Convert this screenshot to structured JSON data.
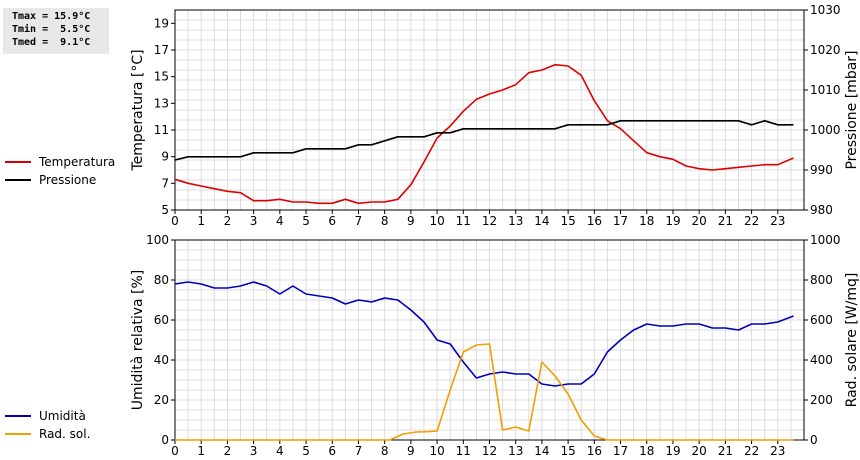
{
  "stats": {
    "tmax": "Tmax = 15.9°C",
    "tmin": "Tmin =  5.5°C",
    "tmed": "Tmed =  9.1°C"
  },
  "legend_top": [
    {
      "label": "Temperatura",
      "color": "#dd0000"
    },
    {
      "label": "Pressione",
      "color": "#000000"
    }
  ],
  "legend_bottom": [
    {
      "label": "Umidità",
      "color": "#0000bb"
    },
    {
      "label": "Rad. sol.",
      "color": "#f0a000"
    }
  ],
  "chart_data": [
    {
      "type": "line",
      "xlabel": "",
      "ylabel": "Temperatura [°C]",
      "y2label": "Pressione [mbar]",
      "xlim": [
        0,
        24
      ],
      "xticks": [
        0,
        1,
        2,
        3,
        4,
        5,
        6,
        7,
        8,
        9,
        10,
        11,
        12,
        13,
        14,
        15,
        16,
        17,
        18,
        19,
        20,
        21,
        22,
        23
      ],
      "ylim": [
        5,
        20
      ],
      "yticks": [
        5,
        7,
        9,
        11,
        13,
        15,
        17,
        19
      ],
      "y2lim": [
        980,
        1030
      ],
      "y2ticks": [
        980,
        990,
        1000,
        1010,
        1020,
        1030
      ],
      "grid": true,
      "series": [
        {
          "name": "Temperatura",
          "color": "#dd0000",
          "axis": "left",
          "points": [
            [
              0,
              7.3
            ],
            [
              0.5,
              7.0
            ],
            [
              1,
              6.8
            ],
            [
              1.5,
              6.6
            ],
            [
              2,
              6.4
            ],
            [
              2.5,
              6.3
            ],
            [
              3,
              5.7
            ],
            [
              3.5,
              5.7
            ],
            [
              4,
              5.8
            ],
            [
              4.5,
              5.6
            ],
            [
              5,
              5.6
            ],
            [
              5.5,
              5.5
            ],
            [
              6,
              5.5
            ],
            [
              6.5,
              5.8
            ],
            [
              7,
              5.5
            ],
            [
              7.5,
              5.6
            ],
            [
              8,
              5.6
            ],
            [
              8.5,
              5.8
            ],
            [
              9,
              6.9
            ],
            [
              9.5,
              8.6
            ],
            [
              10,
              10.4
            ],
            [
              10.5,
              11.3
            ],
            [
              11,
              12.4
            ],
            [
              11.5,
              13.3
            ],
            [
              12,
              13.7
            ],
            [
              12.5,
              14.0
            ],
            [
              13,
              14.4
            ],
            [
              13.5,
              15.3
            ],
            [
              14,
              15.5
            ],
            [
              14.5,
              15.9
            ],
            [
              15,
              15.8
            ],
            [
              15.5,
              15.1
            ],
            [
              16,
              13.2
            ],
            [
              16.5,
              11.7
            ],
            [
              17,
              11.1
            ],
            [
              17.5,
              10.2
            ],
            [
              18,
              9.3
            ],
            [
              18.5,
              9.0
            ],
            [
              19,
              8.8
            ],
            [
              19.5,
              8.3
            ],
            [
              20,
              8.1
            ],
            [
              20.5,
              8.0
            ],
            [
              21,
              8.1
            ],
            [
              21.5,
              8.2
            ],
            [
              22,
              8.3
            ],
            [
              22.5,
              8.4
            ],
            [
              23,
              8.4
            ],
            [
              23.6,
              8.9
            ]
          ]
        },
        {
          "name": "Pressione",
          "color": "#000000",
          "axis": "right",
          "points": [
            [
              0,
              992.5
            ],
            [
              0.5,
              993.3
            ],
            [
              1,
              993.3
            ],
            [
              1.5,
              993.3
            ],
            [
              2,
              993.3
            ],
            [
              2.5,
              993.3
            ],
            [
              3,
              994.3
            ],
            [
              3.5,
              994.3
            ],
            [
              4,
              994.3
            ],
            [
              4.5,
              994.3
            ],
            [
              5,
              995.3
            ],
            [
              5.5,
              995.3
            ],
            [
              6,
              995.3
            ],
            [
              6.5,
              995.3
            ],
            [
              7,
              996.3
            ],
            [
              7.5,
              996.3
            ],
            [
              8,
              997.3
            ],
            [
              8.5,
              998.3
            ],
            [
              9,
              998.3
            ],
            [
              9.5,
              998.3
            ],
            [
              10,
              999.3
            ],
            [
              10.5,
              999.3
            ],
            [
              11,
              1000.3
            ],
            [
              11.5,
              1000.3
            ],
            [
              12,
              1000.3
            ],
            [
              12.5,
              1000.3
            ],
            [
              13,
              1000.3
            ],
            [
              13.5,
              1000.3
            ],
            [
              14,
              1000.3
            ],
            [
              14.5,
              1000.3
            ],
            [
              15,
              1001.3
            ],
            [
              15.5,
              1001.3
            ],
            [
              16,
              1001.3
            ],
            [
              16.5,
              1001.3
            ],
            [
              17,
              1002.3
            ],
            [
              17.5,
              1002.3
            ],
            [
              18,
              1002.3
            ],
            [
              18.5,
              1002.3
            ],
            [
              19,
              1002.3
            ],
            [
              19.5,
              1002.3
            ],
            [
              20,
              1002.3
            ],
            [
              20.5,
              1002.3
            ],
            [
              21,
              1002.3
            ],
            [
              21.5,
              1002.3
            ],
            [
              22,
              1001.3
            ],
            [
              22.5,
              1002.3
            ],
            [
              23,
              1001.3
            ],
            [
              23.6,
              1001.3
            ]
          ]
        }
      ]
    },
    {
      "type": "line",
      "xlabel": "",
      "ylabel": "Umidità relativa [%]",
      "y2label": "Rad. solare [W/mq]",
      "xlim": [
        0,
        24
      ],
      "xticks": [
        0,
        1,
        2,
        3,
        4,
        5,
        6,
        7,
        8,
        9,
        10,
        11,
        12,
        13,
        14,
        15,
        16,
        17,
        18,
        19,
        20,
        21,
        22,
        23
      ],
      "ylim": [
        0,
        100
      ],
      "yticks": [
        0,
        20,
        40,
        60,
        80,
        100
      ],
      "y2lim": [
        0,
        1000
      ],
      "y2ticks": [
        0,
        200,
        400,
        600,
        800,
        1000
      ],
      "grid": true,
      "series": [
        {
          "name": "Umidità",
          "color": "#0000bb",
          "axis": "left",
          "points": [
            [
              0,
              78
            ],
            [
              0.5,
              79
            ],
            [
              1,
              78
            ],
            [
              1.5,
              76
            ],
            [
              2,
              76
            ],
            [
              2.5,
              77
            ],
            [
              3,
              79
            ],
            [
              3.5,
              77
            ],
            [
              4,
              73
            ],
            [
              4.5,
              77
            ],
            [
              5,
              73
            ],
            [
              5.5,
              72
            ],
            [
              6,
              71
            ],
            [
              6.5,
              68
            ],
            [
              7,
              70
            ],
            [
              7.5,
              69
            ],
            [
              8,
              71
            ],
            [
              8.5,
              70
            ],
            [
              9,
              65
            ],
            [
              9.5,
              59
            ],
            [
              10,
              50
            ],
            [
              10.5,
              48
            ],
            [
              11,
              39
            ],
            [
              11.5,
              31
            ],
            [
              12,
              33
            ],
            [
              12.5,
              34
            ],
            [
              13,
              33
            ],
            [
              13.5,
              33
            ],
            [
              14,
              28
            ],
            [
              14.5,
              27
            ],
            [
              15,
              28
            ],
            [
              15.5,
              28
            ],
            [
              16,
              33
            ],
            [
              16.5,
              44
            ],
            [
              17,
              50
            ],
            [
              17.5,
              55
            ],
            [
              18,
              58
            ],
            [
              18.5,
              57
            ],
            [
              19,
              57
            ],
            [
              19.5,
              58
            ],
            [
              20,
              58
            ],
            [
              20.5,
              56
            ],
            [
              21,
              56
            ],
            [
              21.5,
              55
            ],
            [
              22,
              58
            ],
            [
              22.5,
              58
            ],
            [
              23,
              59
            ],
            [
              23.6,
              62
            ]
          ]
        },
        {
          "name": "Rad. sol.",
          "color": "#f0a000",
          "axis": "right",
          "points": [
            [
              0,
              0
            ],
            [
              1,
              0
            ],
            [
              2,
              0
            ],
            [
              3,
              0
            ],
            [
              4,
              0
            ],
            [
              5,
              0
            ],
            [
              6,
              0
            ],
            [
              7,
              0
            ],
            [
              8.2,
              0
            ],
            [
              8.7,
              30
            ],
            [
              9.2,
              40
            ],
            [
              9.7,
              42
            ],
            [
              10,
              45
            ],
            [
              10.5,
              250
            ],
            [
              11,
              440
            ],
            [
              11.5,
              475
            ],
            [
              12,
              480
            ],
            [
              12.5,
              50
            ],
            [
              13,
              65
            ],
            [
              13.5,
              45
            ],
            [
              14,
              390
            ],
            [
              14.5,
              320
            ],
            [
              15,
              230
            ],
            [
              15.5,
              100
            ],
            [
              16,
              20
            ],
            [
              16.5,
              0
            ],
            [
              17,
              0
            ],
            [
              18,
              0
            ],
            [
              19,
              0
            ],
            [
              20,
              0
            ],
            [
              21,
              0
            ],
            [
              22,
              0
            ],
            [
              23,
              0
            ],
            [
              23.6,
              0
            ]
          ]
        }
      ]
    }
  ]
}
